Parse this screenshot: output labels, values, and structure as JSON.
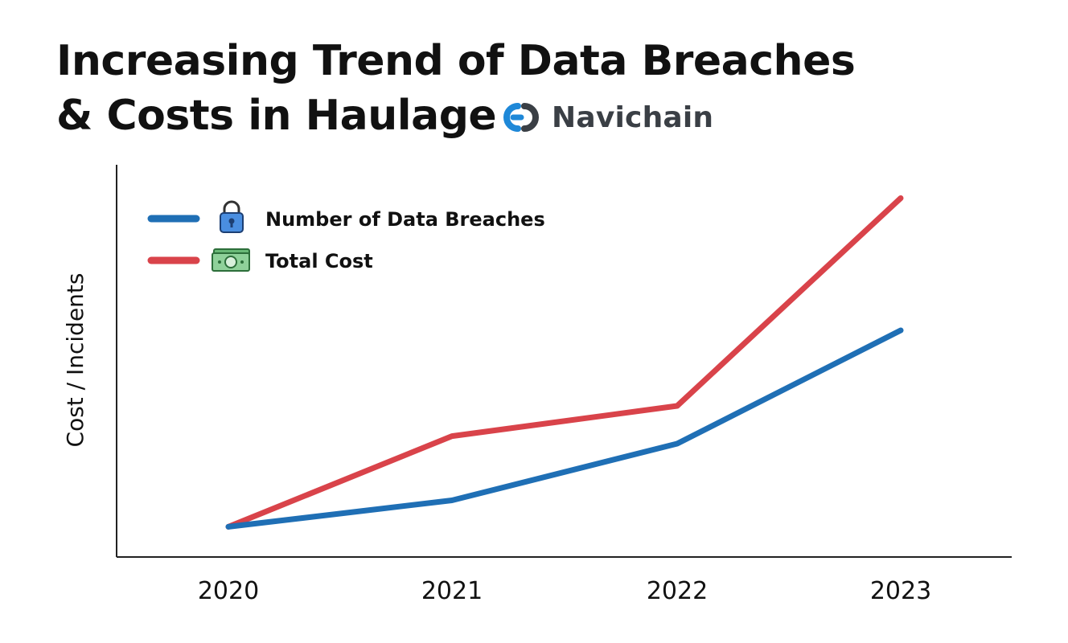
{
  "title": {
    "line1": "Increasing Trend of Data Breaches",
    "line2": "& Costs in Haulage"
  },
  "brand": {
    "name": "Navichain",
    "icon": "navichain-logo-icon"
  },
  "colors": {
    "breaches": "#1f6fb5",
    "cost": "#d9434a",
    "axis": "#222222",
    "brand_blue": "#1e88d8"
  },
  "chart_data": {
    "type": "line",
    "title": "Increasing Trend of Data Breaches & Costs in Haulage",
    "xlabel": "",
    "ylabel": "Cost / Incidents",
    "categories": [
      "2020",
      "2021",
      "2022",
      "2023"
    ],
    "ylim": [
      0,
      100
    ],
    "grid": false,
    "legend_position": "top-left",
    "series": [
      {
        "name": "Number of Data Breaches",
        "icon": "lock-icon",
        "color": "#1f6fb5",
        "values": [
          8,
          15,
          30,
          60
        ]
      },
      {
        "name": "Total Cost",
        "icon": "cash-icon",
        "color": "#d9434a",
        "values": [
          8,
          32,
          40,
          95
        ]
      }
    ]
  }
}
